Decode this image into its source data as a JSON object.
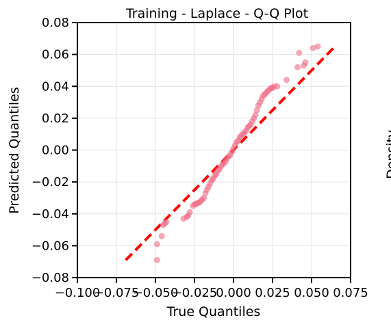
{
  "chart_data": {
    "type": "scatter",
    "title": "Training - Laplace - Q-Q Plot",
    "xlabel": "True Quantiles",
    "ylabel": "Predicted Quantiles",
    "clipped_side_label": "Density",
    "xlim": [
      -0.1,
      0.075
    ],
    "ylim": [
      -0.08,
      0.08
    ],
    "xticks": [
      -0.1,
      -0.075,
      -0.05,
      -0.025,
      0.0,
      0.025,
      0.05,
      0.075
    ],
    "xtick_labels": [
      "−0.100",
      "−0.075",
      "−0.050",
      "−0.025",
      "0.000",
      "0.025",
      "0.050",
      "0.075"
    ],
    "yticks": [
      -0.08,
      -0.06,
      -0.04,
      -0.02,
      0.0,
      0.02,
      0.04,
      0.06,
      0.08
    ],
    "ytick_labels": [
      "−0.08",
      "−0.06",
      "−0.04",
      "−0.02",
      "0.00",
      "0.02",
      "0.04",
      "0.06",
      "0.08"
    ],
    "grid": true,
    "point_color": "#f06a86",
    "line_color": "#ff0000",
    "reference_line": {
      "x": [
        -0.069,
        0.064
      ],
      "y": [
        -0.069,
        0.064
      ]
    },
    "points": [
      {
        "x": -0.049,
        "y": -0.069
      },
      {
        "x": -0.049,
        "y": -0.059
      },
      {
        "x": -0.046,
        "y": -0.054
      },
      {
        "x": -0.045,
        "y": -0.047
      },
      {
        "x": -0.044,
        "y": -0.046
      },
      {
        "x": -0.043,
        "y": -0.045
      },
      {
        "x": -0.032,
        "y": -0.043
      },
      {
        "x": -0.03,
        "y": -0.042
      },
      {
        "x": -0.029,
        "y": -0.041
      },
      {
        "x": -0.028,
        "y": -0.039
      },
      {
        "x": -0.026,
        "y": -0.035
      },
      {
        "x": -0.025,
        "y": -0.034
      },
      {
        "x": -0.024,
        "y": -0.034
      },
      {
        "x": -0.023,
        "y": -0.033
      },
      {
        "x": -0.022,
        "y": -0.033
      },
      {
        "x": -0.021,
        "y": -0.032
      },
      {
        "x": -0.02,
        "y": -0.031
      },
      {
        "x": -0.019,
        "y": -0.03
      },
      {
        "x": -0.018,
        "y": -0.027
      },
      {
        "x": -0.017,
        "y": -0.025
      },
      {
        "x": -0.016,
        "y": -0.023
      },
      {
        "x": -0.015,
        "y": -0.021
      },
      {
        "x": -0.014,
        "y": -0.019
      },
      {
        "x": -0.013,
        "y": -0.018
      },
      {
        "x": -0.012,
        "y": -0.016
      },
      {
        "x": -0.011,
        "y": -0.015
      },
      {
        "x": -0.01,
        "y": -0.013
      },
      {
        "x": -0.009,
        "y": -0.012
      },
      {
        "x": -0.008,
        "y": -0.01
      },
      {
        "x": -0.007,
        "y": -0.009
      },
      {
        "x": -0.006,
        "y": -0.008
      },
      {
        "x": -0.005,
        "y": -0.007
      },
      {
        "x": -0.004,
        "y": -0.005
      },
      {
        "x": -0.003,
        "y": -0.004
      },
      {
        "x": -0.002,
        "y": -0.003
      },
      {
        "x": -0.001,
        "y": -0.001
      },
      {
        "x": 0.0,
        "y": 0.001
      },
      {
        "x": 0.001,
        "y": 0.003
      },
      {
        "x": 0.002,
        "y": 0.005
      },
      {
        "x": 0.003,
        "y": 0.006
      },
      {
        "x": 0.004,
        "y": 0.008
      },
      {
        "x": 0.005,
        "y": 0.009
      },
      {
        "x": 0.006,
        "y": 0.01
      },
      {
        "x": 0.007,
        "y": 0.011
      },
      {
        "x": 0.008,
        "y": 0.012
      },
      {
        "x": 0.009,
        "y": 0.014
      },
      {
        "x": 0.01,
        "y": 0.015
      },
      {
        "x": 0.011,
        "y": 0.016
      },
      {
        "x": 0.012,
        "y": 0.018
      },
      {
        "x": 0.013,
        "y": 0.02
      },
      {
        "x": 0.014,
        "y": 0.022
      },
      {
        "x": 0.015,
        "y": 0.025
      },
      {
        "x": 0.016,
        "y": 0.028
      },
      {
        "x": 0.017,
        "y": 0.03
      },
      {
        "x": 0.018,
        "y": 0.032
      },
      {
        "x": 0.019,
        "y": 0.034
      },
      {
        "x": 0.02,
        "y": 0.035
      },
      {
        "x": 0.021,
        "y": 0.036
      },
      {
        "x": 0.022,
        "y": 0.037
      },
      {
        "x": 0.023,
        "y": 0.038
      },
      {
        "x": 0.024,
        "y": 0.039
      },
      {
        "x": 0.025,
        "y": 0.039
      },
      {
        "x": 0.026,
        "y": 0.04
      },
      {
        "x": 0.028,
        "y": 0.04
      },
      {
        "x": 0.034,
        "y": 0.044
      },
      {
        "x": 0.041,
        "y": 0.052
      },
      {
        "x": 0.045,
        "y": 0.053
      },
      {
        "x": 0.046,
        "y": 0.055
      },
      {
        "x": 0.042,
        "y": 0.061
      },
      {
        "x": 0.051,
        "y": 0.064
      },
      {
        "x": 0.054,
        "y": 0.065
      }
    ]
  }
}
